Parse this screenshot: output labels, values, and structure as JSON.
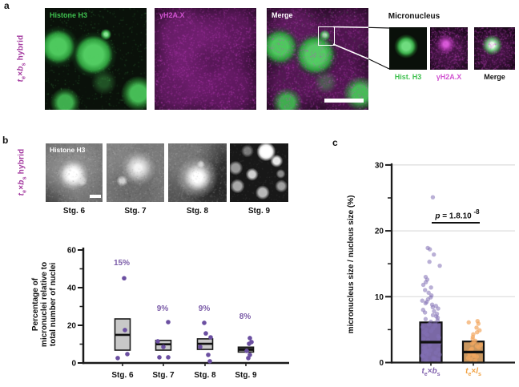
{
  "figure": {
    "panel_a": {
      "label": "a",
      "side_label": {
        "base1": "t",
        "sub1": "e",
        "op": "×",
        "base2": "b",
        "sub2": "s",
        "rest": " hybrid"
      },
      "images": [
        {
          "label": "Histone H3"
        },
        {
          "label": "γH2A.X"
        },
        {
          "label": "Merge"
        }
      ],
      "inset": {
        "title": "Micronucleus",
        "labels": [
          "Hist. H3",
          "γH2A.X",
          "Merge"
        ]
      }
    },
    "panel_b": {
      "label": "b",
      "side_label": {
        "base1": "t",
        "sub1": "e",
        "op": "×",
        "base2": "b",
        "sub2": "s",
        "rest": " hybrid"
      },
      "image_label": "Histone H3",
      "stages": [
        "Stg. 6",
        "Stg. 7",
        "Stg. 8",
        "Stg. 9"
      ]
    },
    "panel_c": {
      "label": "c",
      "p_annotation": {
        "symbol": "p",
        "eq": " = ",
        "mantissa": "1.8.10",
        "exponent": "-8"
      },
      "groups": [
        {
          "base1": "t",
          "sub1": "e",
          "op": "×",
          "base2": "b",
          "sub2": "s"
        },
        {
          "base1": "t",
          "sub1": "e",
          "op": "×",
          "base2": "l",
          "sub2": "s"
        }
      ]
    }
  },
  "colors": {
    "magenta_label": "#a43ba0",
    "green_label": "#3fc04f",
    "magenta_text": "#d153d1",
    "purple_point": "#6b4fa1",
    "purple_label": "#7b5ca8",
    "orange_label": "#f0a040",
    "gray_box": "#c8c8c8",
    "purple_box": "#7a68a5",
    "orange_box": "#c9965e"
  },
  "chart_data": [
    {
      "id": "micronuclei-percentage-by-stage",
      "type": "box-scatter",
      "ylabel_lines": [
        "Percentage of",
        "micronuclei relative to",
        "total number of nuclei"
      ],
      "ylim": [
        0,
        60
      ],
      "yticks_major": [
        0,
        20,
        40,
        60
      ],
      "yticks_minor": [
        10,
        30,
        50
      ],
      "categories": [
        "Stg. 6",
        "Stg. 7",
        "Stg. 8",
        "Stg. 9"
      ],
      "percent_labels": [
        "15%",
        "9%",
        "9%",
        "8%"
      ],
      "boxes": [
        {
          "q1": 6.8,
          "median": 14.9,
          "q3": 23.4
        },
        {
          "q1": 6.8,
          "median": 9.9,
          "q3": 12.0
        },
        {
          "q1": 7.2,
          "median": 10.2,
          "q3": 12.8
        },
        {
          "q1": 5.8,
          "median": 7.2,
          "q3": 8.4
        }
      ],
      "points": [
        [
          45.0,
          17.5,
          4.7,
          2.6
        ],
        [
          21.7,
          11.5,
          8.5,
          3.0,
          3.0
        ],
        [
          21.3,
          15.7,
          13.6,
          8.5,
          4.3,
          0.9
        ],
        [
          13.2,
          11.1,
          10.2,
          6.4,
          4.3,
          2.6
        ]
      ],
      "jitter_x": [
        [
          2,
          3,
          6,
          -6
        ],
        [
          6,
          -7,
          0,
          -5,
          6
        ],
        [
          -1,
          1,
          7,
          -6,
          4,
          6
        ],
        [
          5,
          7,
          4,
          1,
          5,
          3
        ]
      ],
      "point_color": "#6b4fa1",
      "box_fill": "#c8c8c8",
      "label_color": "#7b5ca8",
      "grid": false
    },
    {
      "id": "micronucleus-size-ratio",
      "type": "box-scatter",
      "ylabel": "micronucleus size / nucleus size (%)",
      "ylim": [
        0,
        30
      ],
      "yticks_major": [
        0,
        10,
        20,
        30
      ],
      "yticks_minor": [
        5,
        15,
        25
      ],
      "gridlines": [
        10,
        20,
        30
      ],
      "grid": true,
      "categories": [
        "te×bs",
        "te×ls"
      ],
      "annotation": {
        "text": "p = 1.8.10",
        "exponent": "-8"
      },
      "boxes": [
        {
          "q1": 0,
          "median": 3.1,
          "q3": 6.1,
          "fill": "#7a68a5"
        },
        {
          "q1": 0,
          "median": 1.6,
          "q3": 3.2,
          "fill": "#c9965e"
        }
      ],
      "points": [
        [
          25.1,
          17.4,
          17.2,
          16.4,
          15.3,
          14.7,
          13.0,
          12.6,
          12.2,
          11.8,
          11.4,
          11.0,
          10.6,
          10.2,
          9.9,
          9.6,
          9.4,
          9.2,
          9.0,
          8.8,
          8.6,
          8.4,
          8.2,
          8.0,
          7.8,
          7.6,
          7.4,
          7.2,
          7.0,
          6.8,
          6.6,
          6.4,
          6.2,
          6.0,
          5.8,
          5.6,
          5.4,
          5.2,
          5.0,
          4.8,
          4.6,
          4.4,
          4.2,
          4.0,
          3.8,
          3.6,
          3.4,
          3.2,
          3.0,
          2.8,
          2.6,
          2.4,
          2.2,
          2.0,
          1.9,
          1.8,
          1.7,
          1.6,
          1.5,
          1.4,
          1.3,
          1.2,
          1.1,
          1.0,
          0.9,
          0.8,
          0.7,
          0.6,
          0.5,
          0.4,
          0.3,
          0.2
        ],
        [
          6.3,
          6.1,
          5.9,
          5.3,
          4.9,
          4.6,
          4.3,
          3.9,
          3.6,
          3.3,
          3.1,
          2.9,
          2.7,
          2.5,
          2.3,
          2.1,
          2.0,
          1.8,
          1.6,
          1.5,
          1.3,
          1.2,
          1.0,
          0.9,
          0.7,
          0.5,
          0.3
        ]
      ],
      "point_colors": [
        "#8270b4",
        "#f2a75f"
      ],
      "point_opacities": [
        0.55,
        0.7
      ]
    }
  ]
}
